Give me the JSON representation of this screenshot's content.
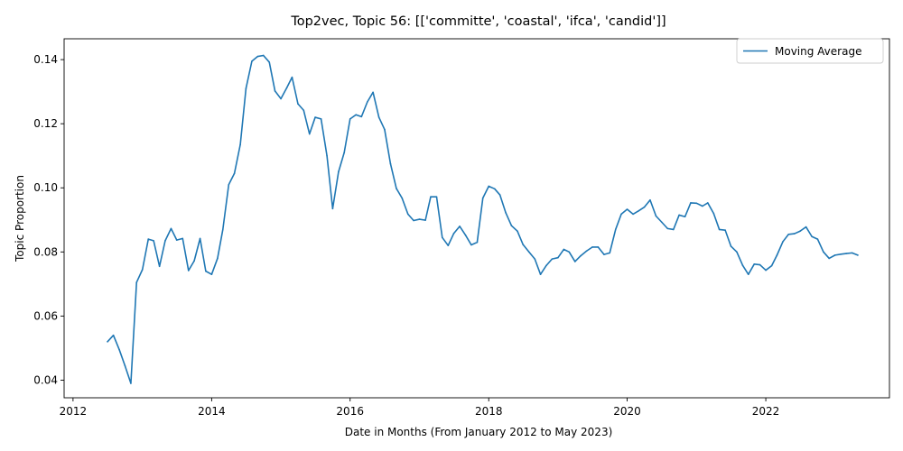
{
  "chart_data": {
    "type": "line",
    "title": "Top2vec, Topic 56: [['committe', 'coastal', 'ifca', 'candid']]",
    "xlabel": "Date in Months (From January 2012 to May 2023)",
    "ylabel": "Topic Proportion",
    "xlim": [
      "2011-11-15",
      "2023-10-15"
    ],
    "ylim": [
      0.0345,
      0.1465
    ],
    "x_ticks": [
      {
        "value": "2012-01-01",
        "label": "2012"
      },
      {
        "value": "2014-01-01",
        "label": "2014"
      },
      {
        "value": "2016-01-01",
        "label": "2016"
      },
      {
        "value": "2018-01-01",
        "label": "2018"
      },
      {
        "value": "2020-01-01",
        "label": "2020"
      },
      {
        "value": "2022-01-01",
        "label": "2022"
      }
    ],
    "y_ticks": [
      {
        "value": 0.04,
        "label": "0.04"
      },
      {
        "value": 0.06,
        "label": "0.06"
      },
      {
        "value": 0.08,
        "label": "0.08"
      },
      {
        "value": 0.1,
        "label": "0.10"
      },
      {
        "value": 0.12,
        "label": "0.12"
      },
      {
        "value": 0.14,
        "label": "0.14"
      }
    ],
    "legend": {
      "position": "top-right"
    },
    "grid": false,
    "series": [
      {
        "name": "Moving Average",
        "color": "#1f77b4",
        "points": [
          [
            "2012-07-01",
            0.052
          ],
          [
            "2012-08-01",
            0.054
          ],
          [
            "2012-09-01",
            0.0495
          ],
          [
            "2012-10-01",
            0.0445
          ],
          [
            "2012-11-01",
            0.039
          ],
          [
            "2012-12-01",
            0.0705
          ],
          [
            "2013-01-01",
            0.0745
          ],
          [
            "2013-02-01",
            0.084
          ],
          [
            "2013-03-01",
            0.0835
          ],
          [
            "2013-04-01",
            0.0755
          ],
          [
            "2013-05-01",
            0.0835
          ],
          [
            "2013-06-01",
            0.0873
          ],
          [
            "2013-07-01",
            0.0837
          ],
          [
            "2013-08-01",
            0.0842
          ],
          [
            "2013-09-01",
            0.0742
          ],
          [
            "2013-10-01",
            0.0772
          ],
          [
            "2013-11-01",
            0.0842
          ],
          [
            "2013-12-01",
            0.074
          ],
          [
            "2014-01-01",
            0.073
          ],
          [
            "2014-02-01",
            0.078
          ],
          [
            "2014-03-01",
            0.087
          ],
          [
            "2014-04-01",
            0.101
          ],
          [
            "2014-05-01",
            0.1045
          ],
          [
            "2014-06-01",
            0.1135
          ],
          [
            "2014-07-01",
            0.131
          ],
          [
            "2014-08-01",
            0.1395
          ],
          [
            "2014-09-01",
            0.141
          ],
          [
            "2014-10-01",
            0.1413
          ],
          [
            "2014-11-01",
            0.1392
          ],
          [
            "2014-12-01",
            0.1302
          ],
          [
            "2015-01-01",
            0.1278
          ],
          [
            "2015-02-01",
            0.1312
          ],
          [
            "2015-03-01",
            0.1345
          ],
          [
            "2015-04-01",
            0.1262
          ],
          [
            "2015-05-01",
            0.1242
          ],
          [
            "2015-06-01",
            0.1168
          ],
          [
            "2015-07-01",
            0.122
          ],
          [
            "2015-08-01",
            0.1215
          ],
          [
            "2015-09-01",
            0.11
          ],
          [
            "2015-10-01",
            0.0935
          ],
          [
            "2015-11-01",
            0.105
          ],
          [
            "2015-12-01",
            0.111
          ],
          [
            "2016-01-01",
            0.1215
          ],
          [
            "2016-02-01",
            0.1228
          ],
          [
            "2016-03-01",
            0.1222
          ],
          [
            "2016-04-01",
            0.1268
          ],
          [
            "2016-05-01",
            0.1298
          ],
          [
            "2016-06-01",
            0.122
          ],
          [
            "2016-07-01",
            0.1182
          ],
          [
            "2016-08-01",
            0.1075
          ],
          [
            "2016-09-01",
            0.0998
          ],
          [
            "2016-10-01",
            0.0968
          ],
          [
            "2016-11-01",
            0.0918
          ],
          [
            "2016-12-01",
            0.0898
          ],
          [
            "2017-01-01",
            0.0902
          ],
          [
            "2017-02-01",
            0.0899
          ],
          [
            "2017-03-01",
            0.0972
          ],
          [
            "2017-04-01",
            0.0972
          ],
          [
            "2017-05-01",
            0.0845
          ],
          [
            "2017-06-01",
            0.082
          ],
          [
            "2017-07-01",
            0.0858
          ],
          [
            "2017-08-01",
            0.088
          ],
          [
            "2017-09-01",
            0.0852
          ],
          [
            "2017-10-01",
            0.0822
          ],
          [
            "2017-11-01",
            0.083
          ],
          [
            "2017-12-01",
            0.0968
          ],
          [
            "2018-01-01",
            0.1005
          ],
          [
            "2018-02-01",
            0.0997
          ],
          [
            "2018-03-01",
            0.0978
          ],
          [
            "2018-04-01",
            0.0922
          ],
          [
            "2018-05-01",
            0.0882
          ],
          [
            "2018-06-01",
            0.0865
          ],
          [
            "2018-07-01",
            0.0823
          ],
          [
            "2018-08-01",
            0.08
          ],
          [
            "2018-09-01",
            0.0778
          ],
          [
            "2018-10-01",
            0.073
          ],
          [
            "2018-11-01",
            0.0758
          ],
          [
            "2018-12-01",
            0.0778
          ],
          [
            "2019-01-01",
            0.0782
          ],
          [
            "2019-02-01",
            0.0808
          ],
          [
            "2019-03-01",
            0.08
          ],
          [
            "2019-04-01",
            0.077
          ],
          [
            "2019-05-01",
            0.0788
          ],
          [
            "2019-06-01",
            0.0803
          ],
          [
            "2019-07-01",
            0.0815
          ],
          [
            "2019-08-01",
            0.0815
          ],
          [
            "2019-09-01",
            0.0792
          ],
          [
            "2019-10-01",
            0.0797
          ],
          [
            "2019-11-01",
            0.087
          ],
          [
            "2019-12-01",
            0.0918
          ],
          [
            "2020-01-01",
            0.0933
          ],
          [
            "2020-02-01",
            0.0918
          ],
          [
            "2020-03-01",
            0.0928
          ],
          [
            "2020-04-01",
            0.094
          ],
          [
            "2020-05-01",
            0.0962
          ],
          [
            "2020-06-01",
            0.0912
          ],
          [
            "2020-07-01",
            0.0893
          ],
          [
            "2020-08-01",
            0.0873
          ],
          [
            "2020-09-01",
            0.087
          ],
          [
            "2020-10-01",
            0.0915
          ],
          [
            "2020-11-01",
            0.091
          ],
          [
            "2020-12-01",
            0.0953
          ],
          [
            "2021-01-01",
            0.0952
          ],
          [
            "2021-02-01",
            0.0943
          ],
          [
            "2021-03-01",
            0.0953
          ],
          [
            "2021-04-01",
            0.092
          ],
          [
            "2021-05-01",
            0.087
          ],
          [
            "2021-06-01",
            0.0868
          ],
          [
            "2021-07-01",
            0.0818
          ],
          [
            "2021-08-01",
            0.08
          ],
          [
            "2021-09-01",
            0.0758
          ],
          [
            "2021-10-01",
            0.073
          ],
          [
            "2021-11-01",
            0.0762
          ],
          [
            "2021-12-01",
            0.076
          ],
          [
            "2022-01-01",
            0.0743
          ],
          [
            "2022-02-01",
            0.0757
          ],
          [
            "2022-03-01",
            0.079
          ],
          [
            "2022-04-01",
            0.0832
          ],
          [
            "2022-05-01",
            0.0855
          ],
          [
            "2022-06-01",
            0.0857
          ],
          [
            "2022-07-01",
            0.0865
          ],
          [
            "2022-08-01",
            0.0878
          ],
          [
            "2022-09-01",
            0.0848
          ],
          [
            "2022-10-01",
            0.084
          ],
          [
            "2022-11-01",
            0.08
          ],
          [
            "2022-12-01",
            0.078
          ],
          [
            "2023-01-01",
            0.079
          ],
          [
            "2023-02-01",
            0.0793
          ],
          [
            "2023-03-01",
            0.0795
          ],
          [
            "2023-04-01",
            0.0797
          ],
          [
            "2023-05-01",
            0.079
          ]
        ]
      }
    ]
  }
}
